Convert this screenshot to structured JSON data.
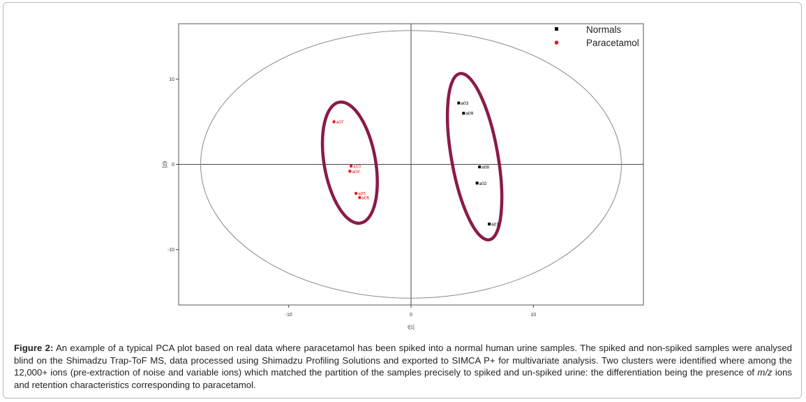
{
  "figure": {
    "label": "Figure 2:",
    "caption_before_italic": " An example of a typical PCA plot based on real data where paracetamol has been spiked into a normal human urine samples. The spiked and non-spiked samples were analysed blind on the Shimadzu Trap-ToF MS, data processed using Shimadzu Profiling Solutions and exported to SIMCA P+ for multivariate analysis. Two clusters were identified where among the 12,000+ ions (pre-extraction of noise and variable ions) which matched the partition of the samples precisely to spiked and un-spiked urine: the differentiation being the presence of ",
    "caption_italic": "m/z",
    "caption_after_italic": " ions and retention characteristics corresponding to paracetamol."
  },
  "chart_data": {
    "type": "scatter",
    "xlabel": "t[1]",
    "ylabel": "t[2]",
    "xlim": [
      -19,
      19
    ],
    "ylim": [
      -16.5,
      16.5
    ],
    "xticks": [
      -10,
      0,
      10
    ],
    "yticks": [
      -10,
      0,
      10
    ],
    "xtick_labels": [
      "-10",
      "0",
      "10"
    ],
    "ytick_labels": [
      "-10",
      "0",
      "10"
    ],
    "grid": false,
    "legend": "top-right",
    "series": [
      {
        "name": "Normals",
        "color": "#000000",
        "marker": "square",
        "points": [
          {
            "label": "a03",
            "x": 3.9,
            "y": 7.2
          },
          {
            "label": "a09",
            "x": 4.3,
            "y": 6.0
          },
          {
            "label": "a08",
            "x": 5.6,
            "y": -0.3
          },
          {
            "label": "a02",
            "x": 5.4,
            "y": -2.2
          },
          {
            "label": "a01",
            "x": 6.4,
            "y": -7.0
          }
        ]
      },
      {
        "name": "Paracetamol",
        "color": "#e8161b",
        "marker": "diamond",
        "points": [
          {
            "label": "a07",
            "x": -6.3,
            "y": 5.0
          },
          {
            "label": "a10",
            "x": -4.9,
            "y": -0.2
          },
          {
            "label": "a04",
            "x": -5.0,
            "y": -0.8
          },
          {
            "label": "a05",
            "x": -4.5,
            "y": -3.4
          },
          {
            "label": "a06",
            "x": -4.2,
            "y": -3.9
          }
        ]
      }
    ],
    "confidence_ellipse": {
      "cx": 0,
      "cy": 0,
      "rx": 17.2,
      "ry": 15.7,
      "color": "#8a8a8a"
    },
    "cluster_outlines": [
      {
        "cx": -5.0,
        "cy": 0.2,
        "rx": 2.1,
        "ry": 7.2,
        "angle_deg": 10,
        "color": "#8b1a4a"
      },
      {
        "cx": 5.2,
        "cy": 0.9,
        "rx": 1.9,
        "ry": 9.9,
        "angle_deg": 10,
        "color": "#8b1a4a"
      }
    ]
  }
}
